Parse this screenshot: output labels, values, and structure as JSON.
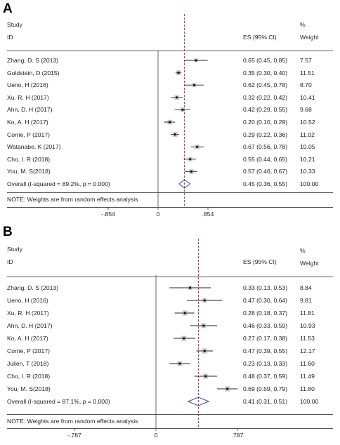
{
  "chart_data": [
    {
      "type": "forest",
      "panel_label": "A",
      "header": {
        "study": "Study",
        "id": "ID",
        "es": "ES (95% CI)",
        "pct": "%",
        "weight": "Weight"
      },
      "studies": [
        {
          "name": "Zhang, D. S (2013)",
          "es": 0.65,
          "lo": 0.45,
          "hi": 0.85,
          "es_text": "0.65 (0.45, 0.85)",
          "weight": "7.57"
        },
        {
          "name": "Goldstein, D (2015)",
          "es": 0.35,
          "lo": 0.3,
          "hi": 0.4,
          "es_text": "0.35 (0.30, 0.40)",
          "weight": "11.51"
        },
        {
          "name": "Ueno, H (2016)",
          "es": 0.62,
          "lo": 0.45,
          "hi": 0.78,
          "es_text": "0.62 (0.45, 0.78)",
          "weight": "8.70"
        },
        {
          "name": "Xu, R. H (2017)",
          "es": 0.32,
          "lo": 0.22,
          "hi": 0.42,
          "es_text": "0.32 (0.22, 0.42)",
          "weight": "10.41"
        },
        {
          "name": "Ahn, D. H (2017)",
          "es": 0.42,
          "lo": 0.29,
          "hi": 0.55,
          "es_text": "0.42 (0.29, 0.55)",
          "weight": "9.68"
        },
        {
          "name": "Ko, A. H (2017)",
          "es": 0.2,
          "lo": 0.1,
          "hi": 0.29,
          "es_text": "0.20 (0.10, 0.29)",
          "weight": "10.52"
        },
        {
          "name": "Corrie, P (2017)",
          "es": 0.29,
          "lo": 0.22,
          "hi": 0.36,
          "es_text": "0.29 (0.22, 0.36)",
          "weight": "11.02"
        },
        {
          "name": "Watanabe, K (2017)",
          "es": 0.67,
          "lo": 0.56,
          "hi": 0.78,
          "es_text": "0.67 (0.56, 0.78)",
          "weight": "10.05"
        },
        {
          "name": "Cho, I. R (2018)",
          "es": 0.55,
          "lo": 0.44,
          "hi": 0.65,
          "es_text": "0.55 (0.44, 0.65)",
          "weight": "10.21"
        },
        {
          "name": "You, M. S(2018)",
          "es": 0.57,
          "lo": 0.46,
          "hi": 0.67,
          "es_text": "0.57 (0.46, 0.67)",
          "weight": "10.33"
        }
      ],
      "overall": {
        "label": "Overall  (I-squared = 89.2%, p = 0.000)",
        "es": 0.45,
        "lo": 0.36,
        "hi": 0.55,
        "es_text": "0.45 (0.36, 0.55)",
        "weight": "100.00"
      },
      "note": "NOTE: Weights are from random effects analysis",
      "xlim": [
        -0.854,
        0.854
      ],
      "ticks": [
        {
          "value": -0.854,
          "label": "-.854"
        },
        {
          "value": 0,
          "label": "0"
        },
        {
          "value": 0.854,
          "label": ".854"
        }
      ]
    },
    {
      "type": "forest",
      "panel_label": "B",
      "header": {
        "study": "Study",
        "id": "ID",
        "es": "ES (95% CI)",
        "pct": "%",
        "weight": "Weight"
      },
      "studies": [
        {
          "name": "Zhang, D. S (2013)",
          "es": 0.33,
          "lo": 0.13,
          "hi": 0.53,
          "es_text": "0.33 (0.13, 0.53)",
          "weight": "8.84"
        },
        {
          "name": "Ueno, H (2016)",
          "es": 0.47,
          "lo": 0.3,
          "hi": 0.64,
          "es_text": "0.47 (0.30, 0.64)",
          "weight": "9.81"
        },
        {
          "name": "Xu, R. H (2017)",
          "es": 0.28,
          "lo": 0.18,
          "hi": 0.37,
          "es_text": "0.28 (0.18, 0.37)",
          "weight": "11.81"
        },
        {
          "name": "Ahn, D. H (2017)",
          "es": 0.46,
          "lo": 0.33,
          "hi": 0.59,
          "es_text": "0.46 (0.33, 0.59)",
          "weight": "10.93"
        },
        {
          "name": "Ko, A. H (2017)",
          "es": 0.27,
          "lo": 0.17,
          "hi": 0.38,
          "es_text": "0.27 (0.17, 0.38)",
          "weight": "11.53"
        },
        {
          "name": "Corrie, P (2017)",
          "es": 0.47,
          "lo": 0.39,
          "hi": 0.55,
          "es_text": "0.47 (0.39, 0.55)",
          "weight": "12.17"
        },
        {
          "name": "Julien, T (2018)",
          "es": 0.23,
          "lo": 0.13,
          "hi": 0.33,
          "es_text": "0.23 (0.13, 0.33)",
          "weight": "11.60"
        },
        {
          "name": "Cho, I. R (2018)",
          "es": 0.48,
          "lo": 0.37,
          "hi": 0.59,
          "es_text": "0.48 (0.37, 0.59)",
          "weight": "11.49"
        },
        {
          "name": "You, M. S(2018)",
          "es": 0.69,
          "lo": 0.59,
          "hi": 0.79,
          "es_text": "0.69 (0.59, 0.79)",
          "weight": "11.80"
        }
      ],
      "overall": {
        "label": "Overall  (I-squared = 87.1%, p = 0.000)",
        "es": 0.41,
        "lo": 0.31,
        "hi": 0.51,
        "es_text": "0.41 (0.31, 0.51)",
        "weight": "100.00"
      },
      "note": "NOTE: Weights are from random effects analysis",
      "xlim": [
        -0.787,
        0.787
      ],
      "ticks": [
        {
          "value": -0.787,
          "label": "-.787"
        },
        {
          "value": 0,
          "label": "0"
        },
        {
          "value": 0.787,
          "label": ".787"
        }
      ]
    }
  ],
  "colors": {
    "diamond": "#3b4a9a",
    "reference_line": "#b03040",
    "marker": "#111111",
    "ci_line": "#222222"
  }
}
